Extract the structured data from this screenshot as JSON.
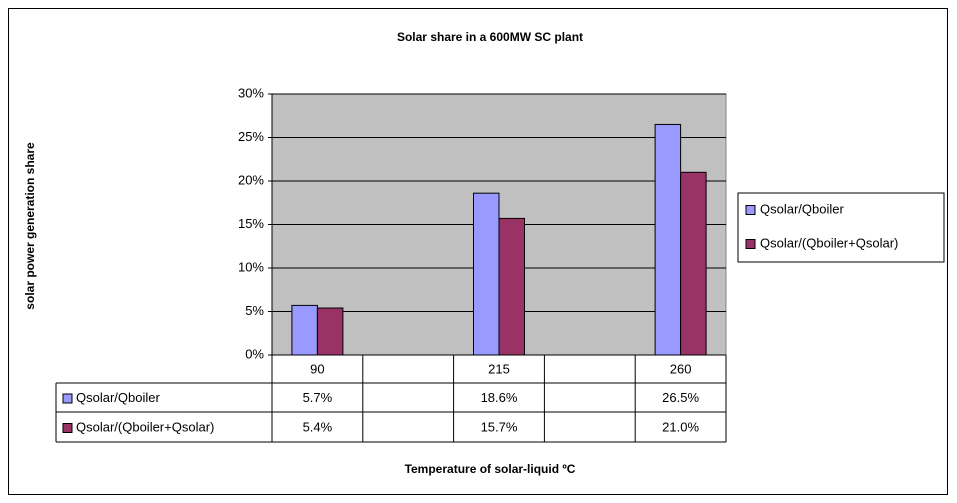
{
  "chart_data": {
    "type": "bar",
    "title": "Solar share in a 600MW SC plant",
    "y_label": "solar power generation share",
    "x_label": "Temperature of solar-liquid ºC",
    "categories": [
      "90",
      null,
      "215",
      null,
      "260"
    ],
    "series": [
      {
        "name": "Qsolar/Qboiler",
        "color": "#9999ff",
        "values": [
          5.7,
          null,
          18.6,
          null,
          26.5
        ],
        "value_labels": [
          "5.7%",
          null,
          "18.6%",
          null,
          "26.5%"
        ]
      },
      {
        "name": "Qsolar/(Qboiler+Qsolar)",
        "color": "#993366",
        "values": [
          5.4,
          null,
          15.7,
          null,
          21.0
        ],
        "value_labels": [
          "5.4%",
          null,
          "15.7%",
          null,
          "21.0%"
        ]
      }
    ],
    "ylim": [
      0,
      30
    ],
    "yticks": [
      {
        "value": 0,
        "label": "0%"
      },
      {
        "value": 5,
        "label": "5%"
      },
      {
        "value": 10,
        "label": "10%"
      },
      {
        "value": 15,
        "label": "15%"
      },
      {
        "value": 20,
        "label": "20%"
      },
      {
        "value": 25,
        "label": "25%"
      },
      {
        "value": 30,
        "label": "30%"
      }
    ],
    "grid": true,
    "legend": "right",
    "plot_background": "#c0c0c0"
  }
}
